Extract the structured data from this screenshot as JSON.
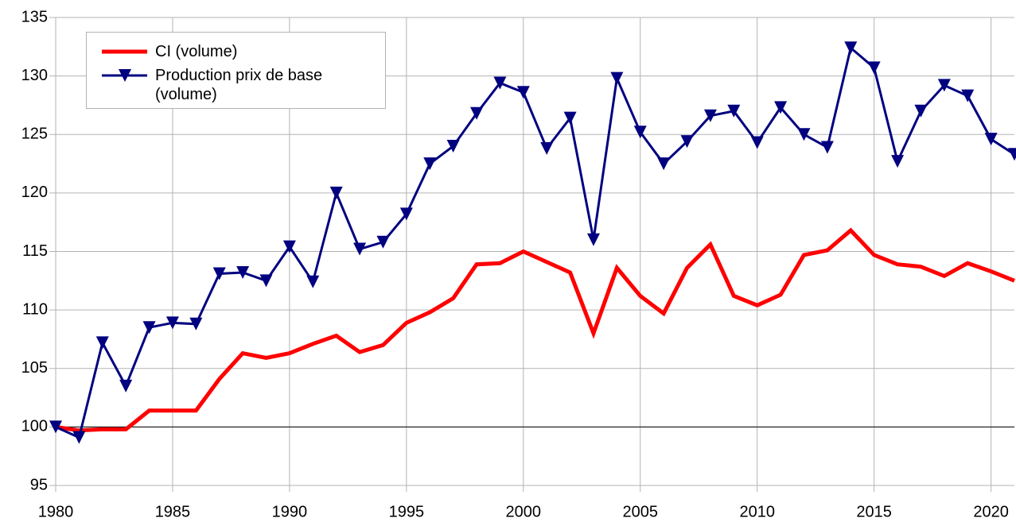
{
  "chart_data": {
    "type": "line",
    "x": [
      1980,
      1981,
      1982,
      1983,
      1984,
      1985,
      1986,
      1987,
      1988,
      1989,
      1990,
      1991,
      1992,
      1993,
      1994,
      1995,
      1996,
      1997,
      1998,
      1999,
      2000,
      2001,
      2002,
      2003,
      2004,
      2005,
      2006,
      2007,
      2008,
      2009,
      2010,
      2011,
      2012,
      2013,
      2014,
      2015,
      2016,
      2017,
      2018,
      2019,
      2020,
      2021
    ],
    "series": [
      {
        "name": "CI (volume)",
        "color": "#ff0000",
        "marker": "none",
        "values": [
          100,
          99.7,
          99.8,
          99.8,
          101.4,
          101.4,
          101.4,
          104.1,
          106.3,
          105.9,
          106.3,
          107.1,
          107.8,
          106.4,
          107.0,
          108.9,
          109.8,
          111.0,
          113.9,
          114.0,
          115.0,
          114.1,
          113.2,
          108.0,
          113.6,
          111.2,
          109.7,
          113.6,
          115.6,
          111.2,
          110.4,
          111.3,
          114.7,
          115.1,
          116.8,
          114.7,
          113.9,
          113.7,
          112.9,
          114.0,
          113.3,
          112.5
        ]
      },
      {
        "name": "Production prix de base (volume)",
        "color": "#000080",
        "marker": "triangle-down",
        "values": [
          100,
          99.1,
          107.2,
          103.5,
          108.5,
          108.9,
          108.8,
          113.1,
          113.2,
          112.5,
          115.4,
          112.4,
          120.0,
          115.2,
          115.8,
          118.2,
          122.5,
          124.0,
          126.8,
          129.4,
          128.6,
          123.8,
          126.4,
          116.0,
          129.8,
          125.2,
          122.5,
          124.4,
          126.6,
          127.0,
          124.3,
          127.3,
          125.0,
          123.9,
          132.4,
          130.7,
          122.7,
          127.0,
          129.2,
          128.3,
          124.6,
          123.3
        ]
      }
    ],
    "xlim": [
      1980,
      2021
    ],
    "xticks": [
      1980,
      1985,
      1990,
      1995,
      2000,
      2005,
      2010,
      2015,
      2020
    ],
    "ylim": [
      95,
      135
    ],
    "yticks": [
      95,
      100,
      105,
      110,
      115,
      120,
      125,
      130,
      135
    ],
    "baseline": 100,
    "grid": true,
    "legend": "upper left"
  }
}
